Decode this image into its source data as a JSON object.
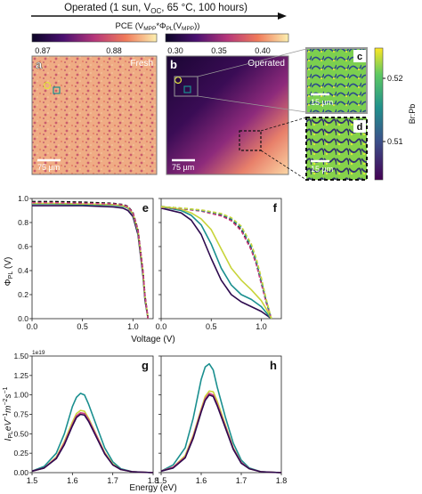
{
  "header": {
    "title_prefix": "Operated (1 sun, V",
    "title_sub1": "OC",
    "title_mid": ", 65 °C, 100 hours)",
    "pce_label_prefix": "PCE (V",
    "pce_sub1": "MPP",
    "pce_mid": "*Φ",
    "pce_sub2": "PL",
    "pce_mid2": "(V",
    "pce_sub3": "MPP",
    "pce_suffix": "))"
  },
  "colorbars": {
    "fresh": {
      "ticks": [
        "0.87",
        "0.88"
      ],
      "range": [
        0.866,
        0.891
      ]
    },
    "operated": {
      "ticks": [
        "0.30",
        "0.35",
        "0.40"
      ],
      "range": [
        0.3,
        0.42
      ]
    },
    "brpb": {
      "label": "Br:Pb",
      "ticks": [
        "0.52",
        "0.51"
      ],
      "range": [
        0.505,
        0.525
      ]
    }
  },
  "maps": {
    "a": {
      "letter": "a",
      "caption": "Fresh",
      "scale": "75 µm"
    },
    "b": {
      "letter": "b",
      "caption": "Operated",
      "scale": "75 µm"
    },
    "c": {
      "letter": "c",
      "scale": "15 µm"
    },
    "d": {
      "letter": "d",
      "scale": "15 µm"
    }
  },
  "colors": {
    "dark_purple": "#2d0a4e",
    "teal": "#1a8f8f",
    "yellow_green": "#c8d43a",
    "black": "#111111",
    "pink": "#cc3f82",
    "map_light": "#f0c39a",
    "map_dark": "#2a0a40"
  },
  "chart_data": [
    {
      "panel": "e",
      "type": "line",
      "xlabel": "Voltage (V)",
      "ylabel": "Φ_PL (V)",
      "xlim": [
        0,
        1.2
      ],
      "ylim": [
        0,
        1.0
      ],
      "xticks": [
        "0.0",
        "0.5",
        "1.0"
      ],
      "yticks": [
        "0.0",
        "0.2",
        "0.4",
        "0.6",
        "0.8",
        "1.0"
      ],
      "series": [
        {
          "color": "#2d0a4e",
          "dashed": false,
          "x": [
            0,
            0.2,
            0.5,
            0.8,
            0.9,
            0.95,
            1.0,
            1.05,
            1.1,
            1.12,
            1.15
          ],
          "y": [
            0.94,
            0.94,
            0.94,
            0.93,
            0.92,
            0.9,
            0.85,
            0.7,
            0.35,
            0.15,
            0
          ]
        },
        {
          "color": "#1a8f8f",
          "dashed": false,
          "x": [
            0,
            0.2,
            0.5,
            0.8,
            0.9,
            0.95,
            1.0,
            1.05,
            1.1,
            1.12,
            1.15
          ],
          "y": [
            0.955,
            0.955,
            0.95,
            0.945,
            0.935,
            0.92,
            0.87,
            0.72,
            0.37,
            0.17,
            0
          ]
        },
        {
          "color": "#c8d43a",
          "dashed": false,
          "x": [
            0,
            0.2,
            0.5,
            0.8,
            0.9,
            0.95,
            1.0,
            1.05,
            1.1,
            1.12,
            1.15
          ],
          "y": [
            0.96,
            0.96,
            0.955,
            0.95,
            0.94,
            0.925,
            0.875,
            0.73,
            0.38,
            0.18,
            0
          ]
        },
        {
          "color": "#111111",
          "dashed": true,
          "x": [
            0,
            0.2,
            0.5,
            0.8,
            0.9,
            0.95,
            1.0,
            1.05,
            1.1,
            1.12,
            1.15
          ],
          "y": [
            0.975,
            0.975,
            0.97,
            0.96,
            0.95,
            0.935,
            0.885,
            0.74,
            0.39,
            0.19,
            0
          ]
        },
        {
          "color": "#cc3f82",
          "dashed": true,
          "x": [
            0,
            0.2,
            0.5,
            0.8,
            0.9,
            0.95,
            1.0,
            1.05,
            1.1,
            1.12,
            1.15
          ],
          "y": [
            0.965,
            0.965,
            0.96,
            0.955,
            0.945,
            0.93,
            0.88,
            0.735,
            0.385,
            0.185,
            0
          ]
        }
      ]
    },
    {
      "panel": "f",
      "type": "line",
      "xlabel": "Voltage (V)",
      "xlim": [
        0,
        1.2
      ],
      "ylim": [
        0,
        1.0
      ],
      "xticks": [
        "0.0",
        "0.5",
        "1.0"
      ],
      "series": [
        {
          "color": "#2d0a4e",
          "dashed": false,
          "x": [
            0,
            0.2,
            0.3,
            0.4,
            0.5,
            0.6,
            0.7,
            0.8,
            0.9,
            1.0,
            1.05,
            1.1
          ],
          "y": [
            0.92,
            0.88,
            0.82,
            0.7,
            0.5,
            0.32,
            0.2,
            0.14,
            0.1,
            0.06,
            0.03,
            0
          ]
        },
        {
          "color": "#1a8f8f",
          "dashed": false,
          "x": [
            0,
            0.2,
            0.3,
            0.4,
            0.5,
            0.6,
            0.7,
            0.8,
            0.9,
            1.0,
            1.05,
            1.1
          ],
          "y": [
            0.93,
            0.9,
            0.86,
            0.78,
            0.62,
            0.42,
            0.28,
            0.2,
            0.16,
            0.1,
            0.05,
            0
          ]
        },
        {
          "color": "#c8d43a",
          "dashed": false,
          "x": [
            0,
            0.2,
            0.3,
            0.4,
            0.5,
            0.6,
            0.7,
            0.8,
            0.9,
            1.0,
            1.05,
            1.1
          ],
          "y": [
            0.935,
            0.91,
            0.88,
            0.83,
            0.74,
            0.58,
            0.42,
            0.32,
            0.24,
            0.15,
            0.08,
            0
          ]
        },
        {
          "color": "#111111",
          "dashed": true,
          "x": [
            0,
            0.2,
            0.4,
            0.6,
            0.7,
            0.8,
            0.9,
            0.95,
            1.0,
            1.05,
            1.1
          ],
          "y": [
            0.93,
            0.92,
            0.9,
            0.86,
            0.82,
            0.74,
            0.58,
            0.46,
            0.3,
            0.14,
            0
          ]
        },
        {
          "color": "#cc3f82",
          "dashed": true,
          "x": [
            0,
            0.2,
            0.4,
            0.6,
            0.7,
            0.8,
            0.9,
            0.95,
            1.0,
            1.05,
            1.1
          ],
          "y": [
            0.925,
            0.915,
            0.895,
            0.855,
            0.815,
            0.73,
            0.57,
            0.45,
            0.29,
            0.13,
            0
          ]
        },
        {
          "color": "#1a8f8f",
          "dashed": true,
          "x": [
            0,
            0.2,
            0.4,
            0.6,
            0.7,
            0.8,
            0.9,
            0.95,
            1.0,
            1.05,
            1.1
          ],
          "y": [
            0.93,
            0.92,
            0.9,
            0.87,
            0.83,
            0.76,
            0.6,
            0.48,
            0.32,
            0.15,
            0
          ]
        },
        {
          "color": "#c8d43a",
          "dashed": true,
          "x": [
            0,
            0.2,
            0.4,
            0.6,
            0.7,
            0.8,
            0.9,
            0.95,
            1.0,
            1.05,
            1.1
          ],
          "y": [
            0.93,
            0.92,
            0.905,
            0.875,
            0.84,
            0.77,
            0.62,
            0.5,
            0.34,
            0.16,
            0
          ]
        }
      ]
    },
    {
      "panel": "g",
      "type": "line",
      "xlabel": "Energy (eV)",
      "ylabel": "I_PL eV^-1 m^-2 s^-1",
      "exponent_label": "1e19",
      "xlim": [
        1.5,
        1.8
      ],
      "ylim": [
        0,
        1.5
      ],
      "xticks": [
        "1.5",
        "1.6",
        "1.7",
        "1.8"
      ],
      "yticks": [
        "0.00",
        "0.25",
        "0.50",
        "0.75",
        "1.00",
        "1.25",
        "1.50"
      ],
      "series": [
        {
          "color": "#1a8f8f",
          "x": [
            1.5,
            1.53,
            1.56,
            1.58,
            1.6,
            1.61,
            1.62,
            1.63,
            1.64,
            1.66,
            1.68,
            1.7,
            1.72,
            1.75,
            1.8
          ],
          "y": [
            0.02,
            0.08,
            0.25,
            0.5,
            0.85,
            0.97,
            1.02,
            1.0,
            0.88,
            0.6,
            0.32,
            0.14,
            0.05,
            0.01,
            0
          ]
        },
        {
          "color": "#c8d43a",
          "x": [
            1.5,
            1.53,
            1.56,
            1.58,
            1.6,
            1.61,
            1.62,
            1.63,
            1.64,
            1.66,
            1.68,
            1.7,
            1.72,
            1.75,
            1.8
          ],
          "y": [
            0.02,
            0.06,
            0.2,
            0.4,
            0.65,
            0.76,
            0.8,
            0.79,
            0.7,
            0.48,
            0.26,
            0.11,
            0.04,
            0.01,
            0
          ]
        },
        {
          "color": "#cc3f82",
          "x": [
            1.5,
            1.53,
            1.56,
            1.58,
            1.6,
            1.61,
            1.62,
            1.63,
            1.64,
            1.66,
            1.68,
            1.7,
            1.72,
            1.75,
            1.8
          ],
          "y": [
            0.02,
            0.06,
            0.19,
            0.38,
            0.62,
            0.73,
            0.77,
            0.76,
            0.68,
            0.47,
            0.25,
            0.1,
            0.04,
            0.01,
            0
          ]
        },
        {
          "color": "#2d0a4e",
          "x": [
            1.5,
            1.53,
            1.56,
            1.58,
            1.6,
            1.61,
            1.62,
            1.63,
            1.64,
            1.66,
            1.68,
            1.7,
            1.72,
            1.75,
            1.8
          ],
          "y": [
            0.02,
            0.06,
            0.18,
            0.36,
            0.6,
            0.71,
            0.75,
            0.74,
            0.66,
            0.45,
            0.24,
            0.1,
            0.04,
            0.01,
            0
          ]
        }
      ]
    },
    {
      "panel": "h",
      "type": "line",
      "xlabel": "Energy (eV)",
      "xlim": [
        1.5,
        1.8
      ],
      "ylim": [
        0,
        1.5
      ],
      "xticks": [
        "1.5",
        "1.6",
        "1.7",
        "1.8"
      ],
      "series": [
        {
          "color": "#1a8f8f",
          "x": [
            1.5,
            1.53,
            1.56,
            1.58,
            1.6,
            1.61,
            1.62,
            1.63,
            1.64,
            1.66,
            1.68,
            1.7,
            1.72,
            1.75,
            1.8
          ],
          "y": [
            0.02,
            0.1,
            0.32,
            0.7,
            1.2,
            1.36,
            1.4,
            1.32,
            1.1,
            0.72,
            0.38,
            0.16,
            0.06,
            0.01,
            0
          ]
        },
        {
          "color": "#c8d43a",
          "x": [
            1.5,
            1.53,
            1.56,
            1.58,
            1.6,
            1.61,
            1.62,
            1.63,
            1.64,
            1.66,
            1.68,
            1.7,
            1.72,
            1.75,
            1.8
          ],
          "y": [
            0.02,
            0.07,
            0.22,
            0.48,
            0.82,
            0.98,
            1.05,
            1.04,
            0.92,
            0.62,
            0.32,
            0.13,
            0.05,
            0.01,
            0
          ]
        },
        {
          "color": "#cc3f82",
          "x": [
            1.5,
            1.53,
            1.56,
            1.58,
            1.6,
            1.61,
            1.62,
            1.63,
            1.64,
            1.66,
            1.68,
            1.7,
            1.72,
            1.75,
            1.8
          ],
          "y": [
            0.02,
            0.07,
            0.2,
            0.46,
            0.8,
            0.95,
            1.02,
            1.0,
            0.88,
            0.6,
            0.31,
            0.13,
            0.05,
            0.01,
            0
          ]
        },
        {
          "color": "#2d0a4e",
          "x": [
            1.5,
            1.53,
            1.56,
            1.58,
            1.6,
            1.61,
            1.62,
            1.63,
            1.64,
            1.66,
            1.68,
            1.7,
            1.72,
            1.75,
            1.8
          ],
          "y": [
            0.02,
            0.06,
            0.19,
            0.44,
            0.78,
            0.93,
            1.0,
            0.98,
            0.86,
            0.58,
            0.3,
            0.12,
            0.05,
            0.01,
            0
          ]
        }
      ]
    }
  ]
}
